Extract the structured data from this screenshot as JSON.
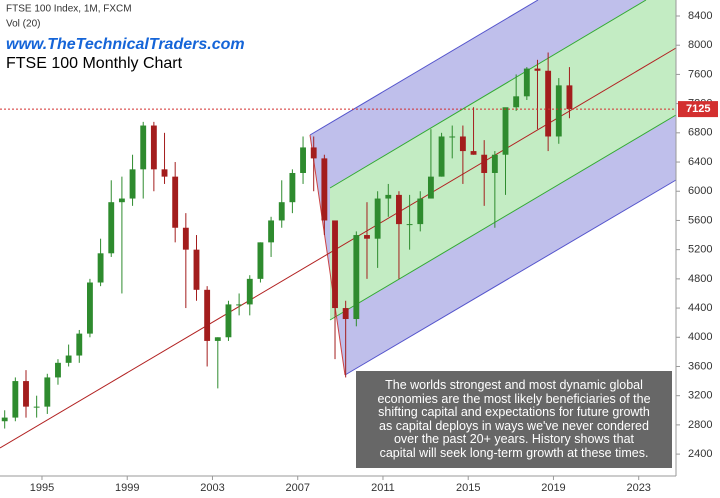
{
  "chart_data": {
    "type": "candlestick",
    "subtitle": "FTSE 100 Index, 1M, FXCM",
    "indicator": "Vol (20)",
    "watermark": "www.TheTechnicalTraders.com",
    "title": "FTSE 100 Monthly Chart",
    "annotation": [
      "The worlds strongest and most dynamic global",
      "economies are the most likely beneficiaries of the",
      "shifting capital and expectations for future growth",
      "as capital deploys in ways we've never condered",
      "over the past 20+ years.  History shows that",
      "capital will seek long-term growth at these times."
    ],
    "x": [
      1993.25,
      1993.75,
      1994.25,
      1994.75,
      1995.25,
      1995.75,
      1996.25,
      1996.75,
      1997.25,
      1997.75,
      1998.25,
      1998.75,
      1999.25,
      1999.75,
      2000.25,
      2000.75,
      2001.25,
      2001.75,
      2002.25,
      2002.75,
      2003.25,
      2003.75,
      2004.25,
      2004.75,
      2005.25,
      2005.75,
      2006.25,
      2006.75,
      2007.25,
      2007.75,
      2008.25,
      2008.75,
      2009.25,
      2009.75,
      2010.25,
      2010.75,
      2011.25,
      2011.75,
      2012.25,
      2012.75,
      2013.25,
      2013.75,
      2014.25,
      2014.75,
      2015.25,
      2015.75,
      2016.25,
      2016.75,
      2017.25,
      2017.75,
      2018.25,
      2018.75,
      2019.25,
      2019.75
    ],
    "open": [
      2850,
      2900,
      3400,
      3050,
      3050,
      3450,
      3650,
      3750,
      4050,
      4750,
      5150,
      5850,
      5900,
      6300,
      6900,
      6300,
      6200,
      5500,
      5200,
      4650,
      3950,
      4000,
      4450,
      4450,
      4800,
      5300,
      5600,
      5850,
      6250,
      6600,
      6450,
      5600,
      4400,
      4250,
      5400,
      5350,
      5900,
      5950,
      5550,
      5550,
      5900,
      6200,
      6750,
      6750,
      6550,
      6500,
      6250,
      6500,
      7150,
      7300,
      7680,
      7650,
      6750,
      7450
    ],
    "high": [
      3000,
      3450,
      3550,
      3200,
      3500,
      3700,
      3900,
      4100,
      4800,
      5350,
      6150,
      6200,
      6500,
      6950,
      6950,
      6800,
      6400,
      5700,
      5400,
      4700,
      4000,
      4500,
      4600,
      4850,
      5300,
      5650,
      6150,
      6300,
      6750,
      6750,
      6500,
      5600,
      4500,
      5450,
      5850,
      6000,
      6100,
      6000,
      5950,
      6000,
      6850,
      6800,
      6900,
      6900,
      7150,
      6700,
      6550,
      7100,
      7600,
      7700,
      7800,
      7900,
      7550,
      7700
    ],
    "low": [
      2750,
      2850,
      2900,
      2900,
      2950,
      3350,
      3600,
      3650,
      4000,
      4700,
      5100,
      4600,
      5800,
      5900,
      6000,
      6100,
      5300,
      4400,
      4500,
      3600,
      3300,
      3950,
      4300,
      4300,
      4750,
      5100,
      5500,
      5700,
      6100,
      6000,
      5400,
      3700,
      3450,
      4150,
      4800,
      4950,
      5650,
      4800,
      5200,
      5450,
      5900,
      6200,
      6450,
      6100,
      6500,
      5800,
      5500,
      5950,
      7100,
      7250,
      6850,
      6550,
      6650,
      7000
    ],
    "close": [
      2900,
      3400,
      3050,
      3050,
      3450,
      3650,
      3750,
      4050,
      4750,
      5150,
      5850,
      5900,
      6300,
      6900,
      6300,
      6200,
      5500,
      5200,
      4650,
      3950,
      4000,
      4450,
      4450,
      4800,
      5300,
      5600,
      5850,
      6250,
      6600,
      6450,
      5600,
      4400,
      4250,
      5400,
      5350,
      5900,
      5950,
      5550,
      5550,
      5900,
      6200,
      6750,
      6750,
      6550,
      6500,
      6250,
      6500,
      7150,
      7300,
      7680,
      7650,
      6750,
      7450,
      7125
    ],
    "up_color": "#2e8b2e",
    "down_color": "#a31d1d",
    "last_price": 7125,
    "xlim": [
      1993.03,
      2024.75
    ],
    "xticks": [
      1995,
      1999,
      2003,
      2007,
      2011,
      2015,
      2019,
      2023
    ],
    "ylim": [
      2100,
      8600
    ],
    "yticks": [
      2400,
      2800,
      3200,
      3600,
      4000,
      4400,
      4800,
      5200,
      5600,
      6000,
      6400,
      6800,
      7200,
      7600,
      8000,
      8400
    ]
  }
}
